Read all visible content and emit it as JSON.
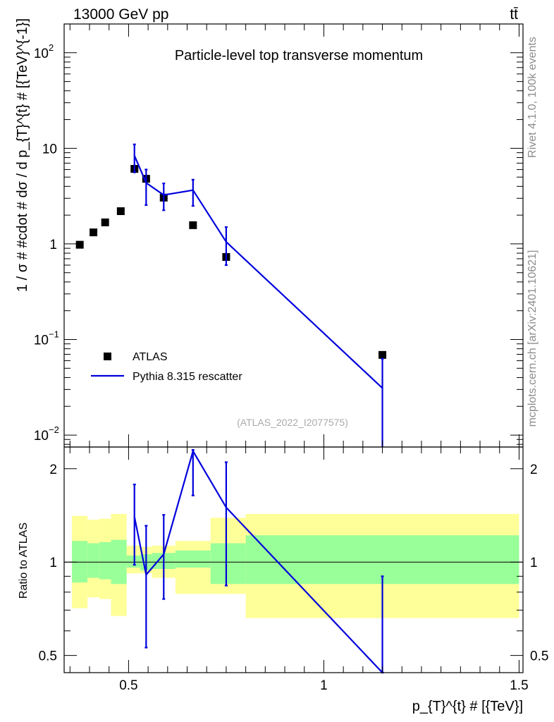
{
  "chart_data": [
    {
      "type": "scatter",
      "panel": "main",
      "title": "Particle-level top transverse momentum",
      "top_left_label": "13000 GeV pp",
      "top_right_label": "tt̄",
      "ylabel": "1 / σ # #cdot # dσ / d p_{T}^{t} # [{TeV}^{-1}]",
      "ylog": true,
      "ylim": [
        0.0075,
        200
      ],
      "xlim": [
        0.335,
        1.51
      ],
      "y_ticks": [
        {
          "value": 0.01,
          "label_base": "10",
          "label_exp": "−2"
        },
        {
          "value": 0.1,
          "label_base": "10",
          "label_exp": "−1"
        },
        {
          "value": 1,
          "label": "1"
        },
        {
          "value": 10,
          "label": "10"
        },
        {
          "value": 100,
          "label_base": "10",
          "label_exp": "2"
        }
      ],
      "legend_position": "lower-left",
      "watermark": "(ATLAS_2022_I2077575)",
      "series": [
        {
          "name": "ATLAS",
          "style": "markers",
          "color": "#000000",
          "x": [
            0.375,
            0.41,
            0.44,
            0.48,
            0.515,
            0.545,
            0.59,
            0.665,
            0.75,
            1.15
          ],
          "y": [
            0.98,
            1.32,
            1.68,
            2.2,
            6.1,
            4.8,
            3.05,
            1.57,
            0.73,
            0.069
          ]
        },
        {
          "name": "Pythia 8.315 rescatter",
          "style": "line",
          "color": "#0000dd",
          "x": [
            0.515,
            0.545,
            0.59,
            0.665,
            0.75,
            1.15
          ],
          "y": [
            8.4,
            4.35,
            3.25,
            3.65,
            1.05,
            0.031
          ],
          "err_low": [
            5.6,
            2.55,
            2.25,
            2.5,
            0.6,
            0.0005
          ],
          "err_high": [
            11.0,
            6.0,
            4.3,
            4.7,
            1.5,
            0.063
          ]
        }
      ]
    },
    {
      "type": "line",
      "panel": "ratio",
      "ylabel": "Ratio to ATLAS",
      "ylog": true,
      "ylim": [
        0.44,
        2.35
      ],
      "xlim": [
        0.335,
        1.51
      ],
      "xlabel": "p_{T}^{t} # [{TeV}]",
      "y_ticks": [
        {
          "value": 0.5,
          "label": "0.5"
        },
        {
          "value": 1,
          "label": "1"
        },
        {
          "value": 2,
          "label": "2"
        }
      ],
      "x_ticks": [
        {
          "value": 0.5,
          "label": "0.5"
        },
        {
          "value": 1,
          "label": "1"
        },
        {
          "value": 1.5,
          "label": "1.5"
        }
      ],
      "uncertainty_bands": {
        "edges": [
          0.355,
          0.395,
          0.425,
          0.455,
          0.495,
          0.53,
          0.56,
          0.62,
          0.71,
          0.8,
          1.5
        ],
        "stat_low": [
          0.86,
          0.89,
          0.88,
          0.85,
          0.96,
          0.94,
          0.95,
          0.96,
          0.85,
          0.85
        ],
        "stat_high": [
          1.17,
          1.15,
          1.16,
          1.18,
          1.05,
          1.06,
          1.07,
          1.09,
          1.15,
          1.22
        ],
        "total_low": [
          0.71,
          0.77,
          0.76,
          0.67,
          0.92,
          0.92,
          0.89,
          0.79,
          0.79,
          0.66
        ],
        "total_high": [
          1.41,
          1.37,
          1.38,
          1.43,
          1.13,
          1.12,
          1.13,
          1.17,
          1.39,
          1.43
        ],
        "stat_color": "#99ff99",
        "total_color": "#ffff99"
      },
      "series": [
        {
          "name": "Pythia 8.315 rescatter",
          "color": "#0000dd",
          "x": [
            0.515,
            0.545,
            0.59,
            0.665,
            0.75,
            1.15
          ],
          "y": [
            1.4,
            0.91,
            1.06,
            2.28,
            1.5,
            0.41
          ],
          "err_low": [
            0.98,
            0.53,
            0.76,
            1.64,
            0.84,
            0.3
          ],
          "err_high": [
            1.78,
            1.31,
            1.42,
            2.3,
            2.1,
            0.9
          ]
        }
      ]
    }
  ],
  "side_text": {
    "rivet": "Rivet 4.1.0,  100k events",
    "mcplots": "mcplots.cern.ch [arXiv:2401.10621]"
  }
}
